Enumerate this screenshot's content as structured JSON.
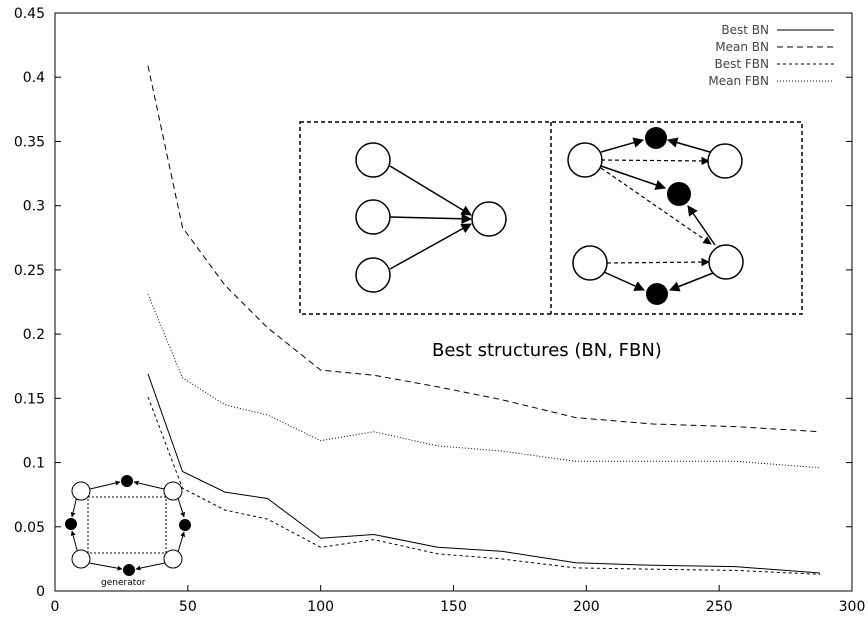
{
  "chart_data": {
    "type": "line",
    "title": "",
    "xlabel": "",
    "ylabel": "",
    "xlim": [
      0,
      300
    ],
    "ylim": [
      0,
      0.45
    ],
    "x_ticks": [
      "0",
      "50",
      "100",
      "150",
      "200",
      "250",
      "300"
    ],
    "y_ticks": [
      "0",
      "0.05",
      "0.1",
      "0.15",
      "0.2",
      "0.25",
      "0.3",
      "0.35",
      "0.4",
      "0.45"
    ],
    "grid": false,
    "legend_position": "top-right",
    "x": [
      35,
      48,
      64,
      80,
      100,
      120,
      144,
      168,
      196,
      225,
      256,
      288
    ],
    "series": [
      {
        "name": "Best BN",
        "style": "solid",
        "values": [
          0.169,
          0.093,
          0.077,
          0.072,
          0.041,
          0.044,
          0.034,
          0.031,
          0.022,
          0.02,
          0.019,
          0.014
        ]
      },
      {
        "name": "Mean BN",
        "style": "dashed",
        "values": [
          0.409,
          0.283,
          0.238,
          0.205,
          0.172,
          0.168,
          0.159,
          0.149,
          0.135,
          0.13,
          0.128,
          0.124
        ]
      },
      {
        "name": "Best FBN",
        "style": "short-dashed",
        "values": [
          0.151,
          0.08,
          0.063,
          0.056,
          0.034,
          0.04,
          0.029,
          0.025,
          0.018,
          0.017,
          0.016,
          0.013
        ]
      },
      {
        "name": "Mean FBN",
        "style": "dotted",
        "values": [
          0.231,
          0.166,
          0.145,
          0.137,
          0.117,
          0.124,
          0.113,
          0.109,
          0.101,
          0.101,
          0.101,
          0.096
        ]
      }
    ],
    "annotations": {
      "structures_caption": "Best structures (BN, FBN)",
      "generator_label": "generator"
    }
  }
}
